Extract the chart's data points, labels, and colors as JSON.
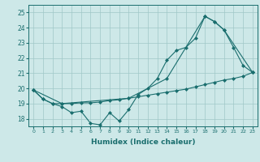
{
  "xlabel": "Humidex (Indice chaleur)",
  "background_color": "#cde8e8",
  "grid_color": "#a0c8c8",
  "line_color": "#1a6e6e",
  "xlim": [
    -0.5,
    23.5
  ],
  "ylim": [
    17.5,
    25.5
  ],
  "yticks": [
    18,
    19,
    20,
    21,
    22,
    23,
    24,
    25
  ],
  "xticks": [
    0,
    1,
    2,
    3,
    4,
    5,
    6,
    7,
    8,
    9,
    10,
    11,
    12,
    13,
    14,
    15,
    16,
    17,
    18,
    19,
    20,
    21,
    22,
    23
  ],
  "line1_x": [
    0,
    1,
    2,
    3,
    4,
    5,
    6,
    7,
    8,
    9,
    10,
    11,
    12,
    13,
    14,
    15,
    16,
    17,
    18,
    19,
    20,
    21,
    22,
    23
  ],
  "line1_y": [
    19.9,
    19.3,
    19.0,
    18.8,
    18.4,
    18.5,
    17.7,
    17.6,
    18.4,
    17.85,
    18.6,
    19.6,
    20.0,
    20.65,
    21.85,
    22.5,
    22.7,
    23.3,
    24.75,
    24.4,
    23.85,
    22.7,
    21.5,
    21.05
  ],
  "line2_x": [
    0,
    1,
    2,
    3,
    4,
    5,
    6,
    7,
    8,
    9,
    10,
    11,
    12,
    13,
    14,
    15,
    16,
    17,
    18,
    19,
    20,
    21,
    22,
    23
  ],
  "line2_y": [
    19.9,
    19.3,
    19.0,
    19.0,
    19.0,
    19.05,
    19.05,
    19.1,
    19.2,
    19.25,
    19.35,
    19.45,
    19.55,
    19.65,
    19.75,
    19.85,
    19.95,
    20.1,
    20.25,
    20.4,
    20.55,
    20.65,
    20.8,
    21.05
  ],
  "line3_x": [
    0,
    3,
    10,
    14,
    18,
    19,
    20,
    23
  ],
  "line3_y": [
    19.9,
    19.0,
    19.35,
    20.65,
    24.75,
    24.4,
    23.85,
    21.05
  ]
}
